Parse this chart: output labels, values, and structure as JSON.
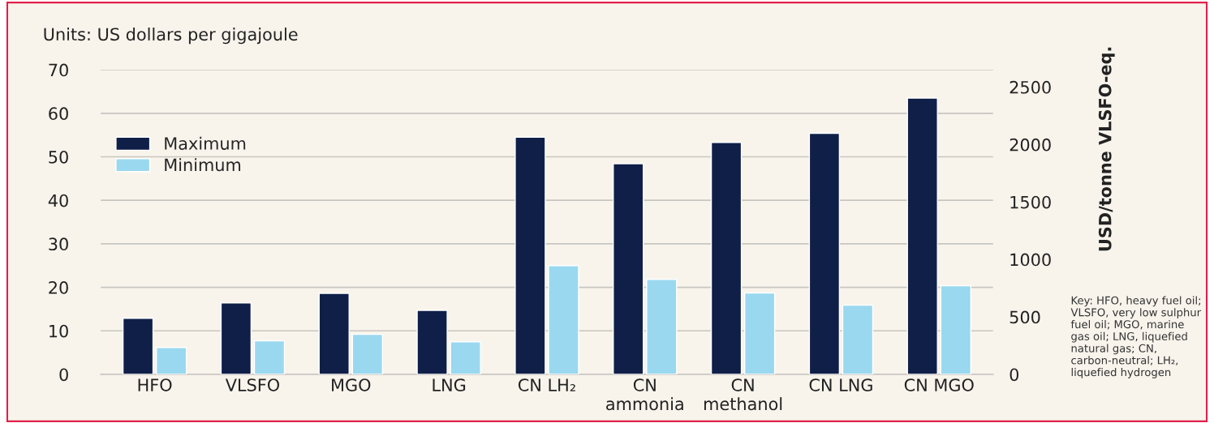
{
  "chart_data": {
    "type": "bar",
    "ylabel": "Units: US dollars per gigajoule",
    "y2label": "USD/tonne VLSFO-eq.",
    "categories": [
      "HFO",
      "VLSFO",
      "MGO",
      "LNG",
      "CN LH₂",
      "CN\nammonia",
      "CN\nmethanol",
      "CN LNG",
      "CN MGO"
    ],
    "series": [
      {
        "name": "Maximum",
        "color": "#101f48",
        "values": [
          12.9,
          16.4,
          18.6,
          14.7,
          54.5,
          48.4,
          53.3,
          55.4,
          63.5
        ]
      },
      {
        "name": "Minimum",
        "color": "#9ad8ef",
        "values": [
          6.2,
          7.7,
          9.2,
          7.5,
          25.0,
          21.8,
          18.7,
          15.9,
          20.4
        ]
      }
    ],
    "ylim": [
      0,
      70
    ],
    "yticks": [
      0,
      10,
      20,
      30,
      40,
      50,
      60,
      70
    ],
    "y2lim": [
      0,
      2650
    ],
    "y2ticks": [
      0,
      500,
      1000,
      1500,
      2000,
      2500
    ],
    "grid": "y",
    "legend": "top left",
    "annotations": [
      "Key: HFO, heavy fuel oil; VLSFO, very low sulphur fuel oil; MGO, marine gas oil; LNG, liquefied natural gas; CN, carbon-neutral; LH₂, liquefied hydrogen"
    ]
  }
}
